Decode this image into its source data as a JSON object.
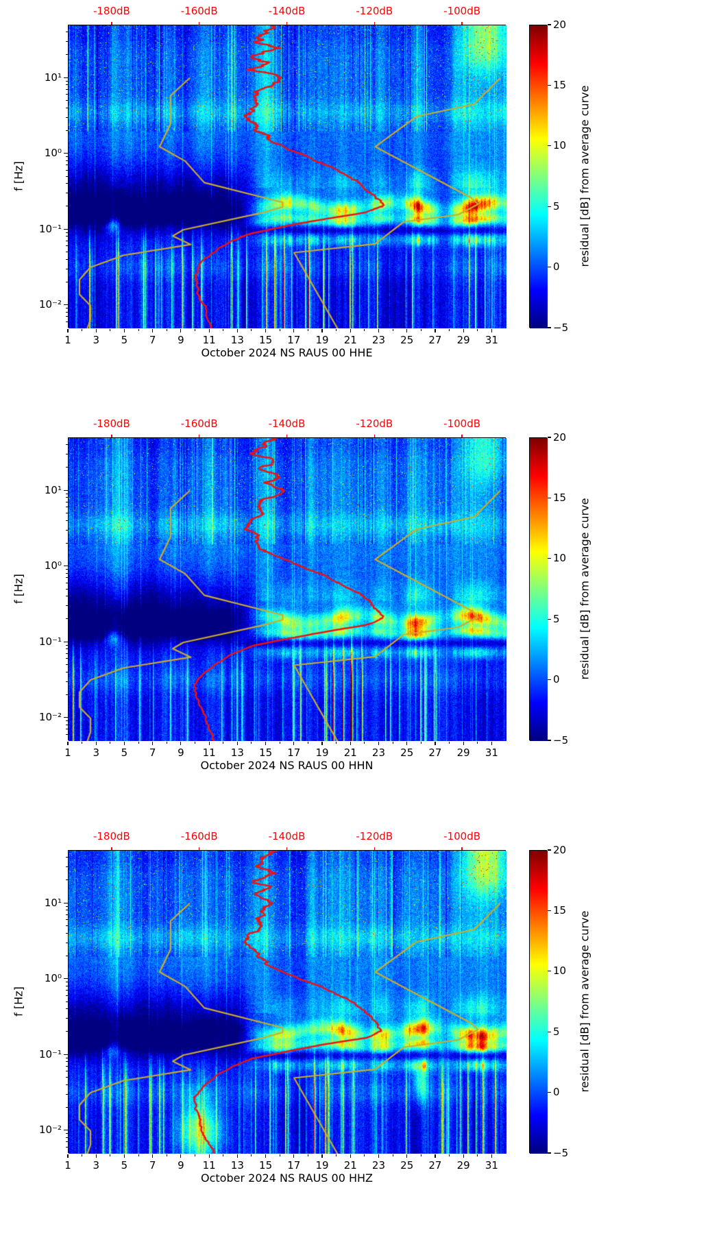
{
  "colors": {
    "background": "#ffffff",
    "top_axis_text": "#ff0000",
    "mean_curve": "#ee1111",
    "noise_model_curve": "#ccac2a",
    "axis_text": "#000000"
  },
  "colorbar": {
    "label": "residual [dB] from average curve",
    "tick_labels": [
      "20",
      "15",
      "10",
      "5",
      "0",
      "−5"
    ],
    "tick_values": [
      20,
      15,
      10,
      5,
      0,
      -5
    ],
    "vmin": -5,
    "vmax": 20,
    "colormap": "jet"
  },
  "top_axis": {
    "tick_labels": [
      "-180dB",
      "-160dB",
      "-140dB",
      "-120dB",
      "-100dB"
    ],
    "tick_values": [
      -180,
      -160,
      -140,
      -120,
      -100
    ],
    "range_db": [
      -190,
      -90
    ]
  },
  "y_axis": {
    "label": "f [Hz]",
    "tick_labels": [
      "10¹",
      "10⁰",
      "10⁻¹",
      "10⁻²"
    ],
    "tick_values_hz": [
      10,
      1,
      0.1,
      0.01
    ],
    "scale": "log",
    "range_hz": [
      0.005,
      50
    ]
  },
  "x_axis": {
    "tick_labels": [
      "1",
      "3",
      "5",
      "7",
      "9",
      "11",
      "13",
      "15",
      "17",
      "19",
      "21",
      "23",
      "25",
      "27",
      "29",
      "31"
    ],
    "tick_values": [
      1,
      3,
      5,
      7,
      9,
      11,
      13,
      15,
      17,
      19,
      21,
      23,
      25,
      27,
      29,
      31
    ],
    "range_days": [
      1,
      32
    ]
  },
  "curves": {
    "station_mean_psd": {
      "name": "station average PSD curve (red, plotted against top dB axis)",
      "points_hz_db": [
        [
          50,
          -143
        ],
        [
          40,
          -145
        ],
        [
          30,
          -147
        ],
        [
          25,
          -142
        ],
        [
          20,
          -148
        ],
        [
          16,
          -144
        ],
        [
          13,
          -147
        ],
        [
          10,
          -142
        ],
        [
          8,
          -145
        ],
        [
          6.3,
          -147
        ],
        [
          5,
          -146
        ],
        [
          4,
          -148
        ],
        [
          3.2,
          -149
        ],
        [
          2.5,
          -148
        ],
        [
          2,
          -147
        ],
        [
          1.6,
          -145
        ],
        [
          1.25,
          -141
        ],
        [
          1,
          -137
        ],
        [
          0.8,
          -133
        ],
        [
          0.6,
          -128
        ],
        [
          0.45,
          -124
        ],
        [
          0.33,
          -121
        ],
        [
          0.26,
          -119
        ],
        [
          0.21,
          -118
        ],
        [
          0.17,
          -122
        ],
        [
          0.14,
          -131
        ],
        [
          0.11,
          -141
        ],
        [
          0.09,
          -148
        ],
        [
          0.07,
          -153
        ],
        [
          0.055,
          -156
        ],
        [
          0.04,
          -159
        ],
        [
          0.028,
          -161
        ],
        [
          0.02,
          -161
        ],
        [
          0.014,
          -160
        ],
        [
          0.01,
          -159
        ],
        [
          0.007,
          -158
        ],
        [
          0.005,
          -157
        ]
      ]
    },
    "nlnm": {
      "name": "low noise model curve (yellow, left)",
      "points_hz_db": [
        [
          10,
          -162.4
        ],
        [
          5.9,
          -166.7
        ],
        [
          2.5,
          -166.7
        ],
        [
          1.25,
          -169.2
        ],
        [
          0.81,
          -163.4
        ],
        [
          0.42,
          -159.0
        ],
        [
          0.23,
          -141.1
        ],
        [
          0.2,
          -141.1
        ],
        [
          0.167,
          -146.0
        ],
        [
          0.1,
          -163.8
        ],
        [
          0.083,
          -166.2
        ],
        [
          0.064,
          -162.1
        ],
        [
          0.046,
          -177.5
        ],
        [
          0.032,
          -185.0
        ],
        [
          0.022,
          -187.5
        ],
        [
          0.014,
          -187.5
        ],
        [
          0.01,
          -185.0
        ],
        [
          0.0065,
          -185.0
        ],
        [
          0.005,
          -185.7
        ]
      ]
    },
    "nhnm": {
      "name": "high noise model curve (yellow, right)",
      "points_hz_db": [
        [
          10,
          -91.5
        ],
        [
          4.55,
          -97.4
        ],
        [
          3.13,
          -110.5
        ],
        [
          1.25,
          -120.0
        ],
        [
          0.263,
          -98.0
        ],
        [
          0.217,
          -96.5
        ],
        [
          0.159,
          -101.0
        ],
        [
          0.127,
          -113.5
        ],
        [
          0.065,
          -120.0
        ],
        [
          0.05,
          -138.5
        ],
        [
          0.005,
          -128.6
        ]
      ]
    }
  },
  "chart_data": [
    {
      "type": "heatmap",
      "xlabel": "October 2024 NS RAUS 00 HHE",
      "ylabel": "f [Hz]",
      "x_ticks": [
        1,
        3,
        5,
        7,
        9,
        11,
        13,
        15,
        17,
        19,
        21,
        23,
        25,
        27,
        29,
        31
      ],
      "x_range_days": [
        1,
        32
      ],
      "y_scale": "log",
      "y_range_hz": [
        0.005,
        50
      ],
      "y_ticks_hz": [
        10,
        1,
        0.1,
        0.01
      ],
      "value_label": "residual [dB] from average curve",
      "value_range": [
        -5,
        20
      ],
      "colormap": "jet",
      "top_axis_db_ticks": [
        -180,
        -160,
        -140,
        -120,
        -100
      ],
      "top_axis_db_range": [
        -190,
        -90
      ],
      "overlays": [
        "station_mean_psd",
        "nlnm",
        "nhnm"
      ],
      "features": [
        "very low residuals (dark blue, about -5 dB) at 0.1-0.4 Hz during days 1-13",
        "high residuals (+10 to +20 dB, yellow-red band) in microseism band 0.1-0.3 Hz days 14-31, strongest near days 25-26 and 29-30",
        "yellow-green patch near 0.1-0.15 Hz around day 4",
        "dense vertical transient stripes below 0.1 Hz, strongest days 17-27",
        "broadband speckle above 1 Hz with bright day-long columns near days 4, 15, 29-31",
        "bright patch above 15 Hz during days 29-31"
      ]
    },
    {
      "type": "heatmap",
      "xlabel": "October 2024 NS RAUS 00 HHN",
      "ylabel": "f [Hz]",
      "x_ticks": [
        1,
        3,
        5,
        7,
        9,
        11,
        13,
        15,
        17,
        19,
        21,
        23,
        25,
        27,
        29,
        31
      ],
      "x_range_days": [
        1,
        32
      ],
      "y_scale": "log",
      "y_range_hz": [
        0.005,
        50
      ],
      "y_ticks_hz": [
        10,
        1,
        0.1,
        0.01
      ],
      "value_label": "residual [dB] from average curve",
      "value_range": [
        -5,
        20
      ],
      "colormap": "jet",
      "top_axis_db_ticks": [
        -180,
        -160,
        -140,
        -120,
        -100
      ],
      "top_axis_db_range": [
        -190,
        -90
      ],
      "overlays": [
        "station_mean_psd",
        "nlnm",
        "nhnm"
      ],
      "features": [
        "very low residuals (dark blue) at 0.1-0.4 Hz during days 1-13",
        "high residuals (+10 to +20 dB) in microseism band 0.1-0.3 Hz days 14-31, red spots near days 25-26 and 29-30",
        "vertical transient stripes below 0.1 Hz",
        "broadband speckle above 1 Hz with brighter columns near days 4, 15, 19-24"
      ]
    },
    {
      "type": "heatmap",
      "xlabel": "October 2024 NS RAUS 00 HHZ",
      "ylabel": "f [Hz]",
      "x_ticks": [
        1,
        3,
        5,
        7,
        9,
        11,
        13,
        15,
        17,
        19,
        21,
        23,
        25,
        27,
        29,
        31
      ],
      "x_range_days": [
        1,
        32
      ],
      "y_scale": "log",
      "y_range_hz": [
        0.005,
        50
      ],
      "y_ticks_hz": [
        10,
        1,
        0.1,
        0.01
      ],
      "value_label": "residual [dB] from average curve",
      "value_range": [
        -5,
        20
      ],
      "colormap": "jet",
      "top_axis_db_ticks": [
        -180,
        -160,
        -140,
        -120,
        -100
      ],
      "top_axis_db_range": [
        -190,
        -90
      ],
      "overlays": [
        "station_mean_psd",
        "nlnm",
        "nhnm"
      ],
      "features": [
        "very low residuals (dark blue) at 0.1-0.4 Hz during days 1-13",
        "high residuals (+10 to +20 dB) in microseism band 0.1-0.3 Hz days 14-31, strongest near days 25-26 and 29-30",
        "orange-red patches at 0.005-0.02 Hz around days 9-12",
        "strong red transient column near day 26 at 0.03-0.1 Hz",
        "bright patch above 15 Hz during days 29-31"
      ]
    }
  ]
}
